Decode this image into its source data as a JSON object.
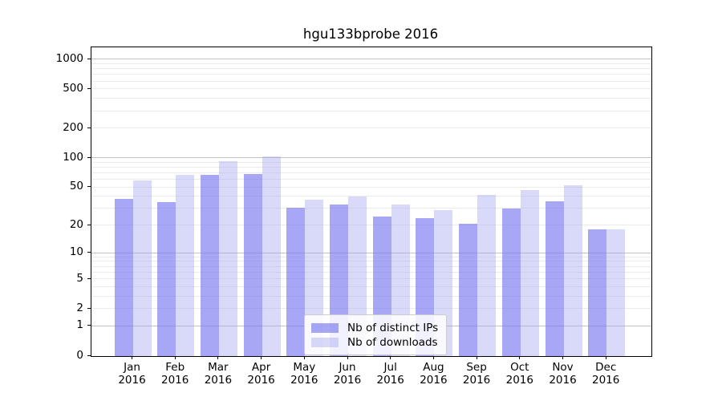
{
  "chart_data": {
    "type": "bar",
    "title": "hgu133bprobe 2016",
    "categories": [
      "Jan",
      "Feb",
      "Mar",
      "Apr",
      "May",
      "Jun",
      "Jul",
      "Aug",
      "Sep",
      "Oct",
      "Nov",
      "Dec"
    ],
    "x_tick_year": "2016",
    "series": [
      {
        "name": "Nb of distinct IPs",
        "color_base": "#7878f0",
        "fill_alpha": 0.65,
        "color_effective": "#a9a9f4",
        "values": [
          38,
          35,
          67,
          69,
          31,
          33,
          25,
          24,
          21,
          30,
          36,
          18
        ]
      },
      {
        "name": "Nb of downloads",
        "color_base": "#a0a0f0",
        "fill_alpha": 0.4,
        "color_effective": "#dbdbf8",
        "values": [
          59,
          67,
          93,
          103,
          37,
          40,
          33,
          29,
          42,
          47,
          53,
          18
        ]
      }
    ],
    "yscale": "log1p",
    "ylim": [
      0,
      1300
    ],
    "yticks": [
      0,
      1,
      2,
      5,
      10,
      20,
      50,
      100,
      200,
      500,
      1000
    ],
    "grid": true,
    "grid_major_values": [
      1,
      10,
      100,
      1000
    ],
    "grid_major_color": "#c2c2c2",
    "grid_minor_color": "#ebebeb",
    "legend_position": "lower center",
    "axis_color": "#000000",
    "background_color": "#ffffff"
  }
}
